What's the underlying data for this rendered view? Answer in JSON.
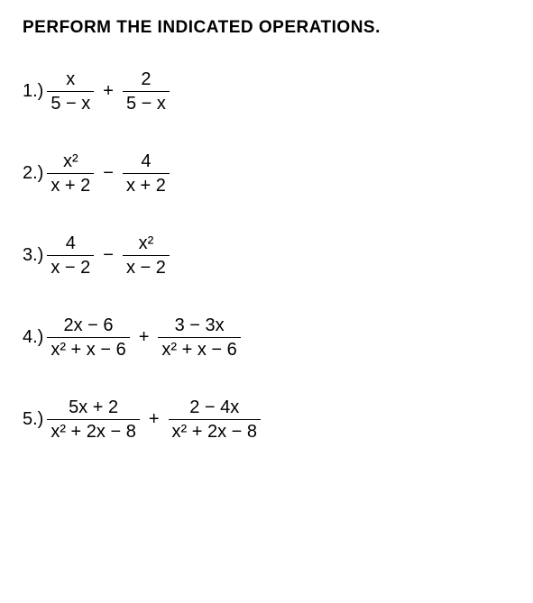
{
  "title": "PERFORM THE INDICATED OPERATIONS.",
  "problems": [
    {
      "label": "1.)",
      "frac1_top": "x",
      "frac1_bot": "5 − x",
      "op": "+",
      "frac2_top": "2",
      "frac2_bot": "5 − x"
    },
    {
      "label": "2.)",
      "frac1_top": "x²",
      "frac1_bot": "x + 2",
      "op": "−",
      "frac2_top": "4",
      "frac2_bot": "x + 2"
    },
    {
      "label": "3.)",
      "frac1_top": "4",
      "frac1_bot": "x − 2",
      "op": "−",
      "frac2_top": "x²",
      "frac2_bot": "x − 2"
    },
    {
      "label": "4.)",
      "frac1_top": "2x − 6",
      "frac1_bot": "x² + x − 6",
      "op": "+",
      "frac2_top": "3 − 3x",
      "frac2_bot": "x² + x − 6"
    },
    {
      "label": "5.)",
      "frac1_top": "5x + 2",
      "frac1_bot": "x² + 2x − 8",
      "op": "+",
      "frac2_top": "2 − 4x",
      "frac2_bot": "x² + 2x − 8"
    }
  ]
}
